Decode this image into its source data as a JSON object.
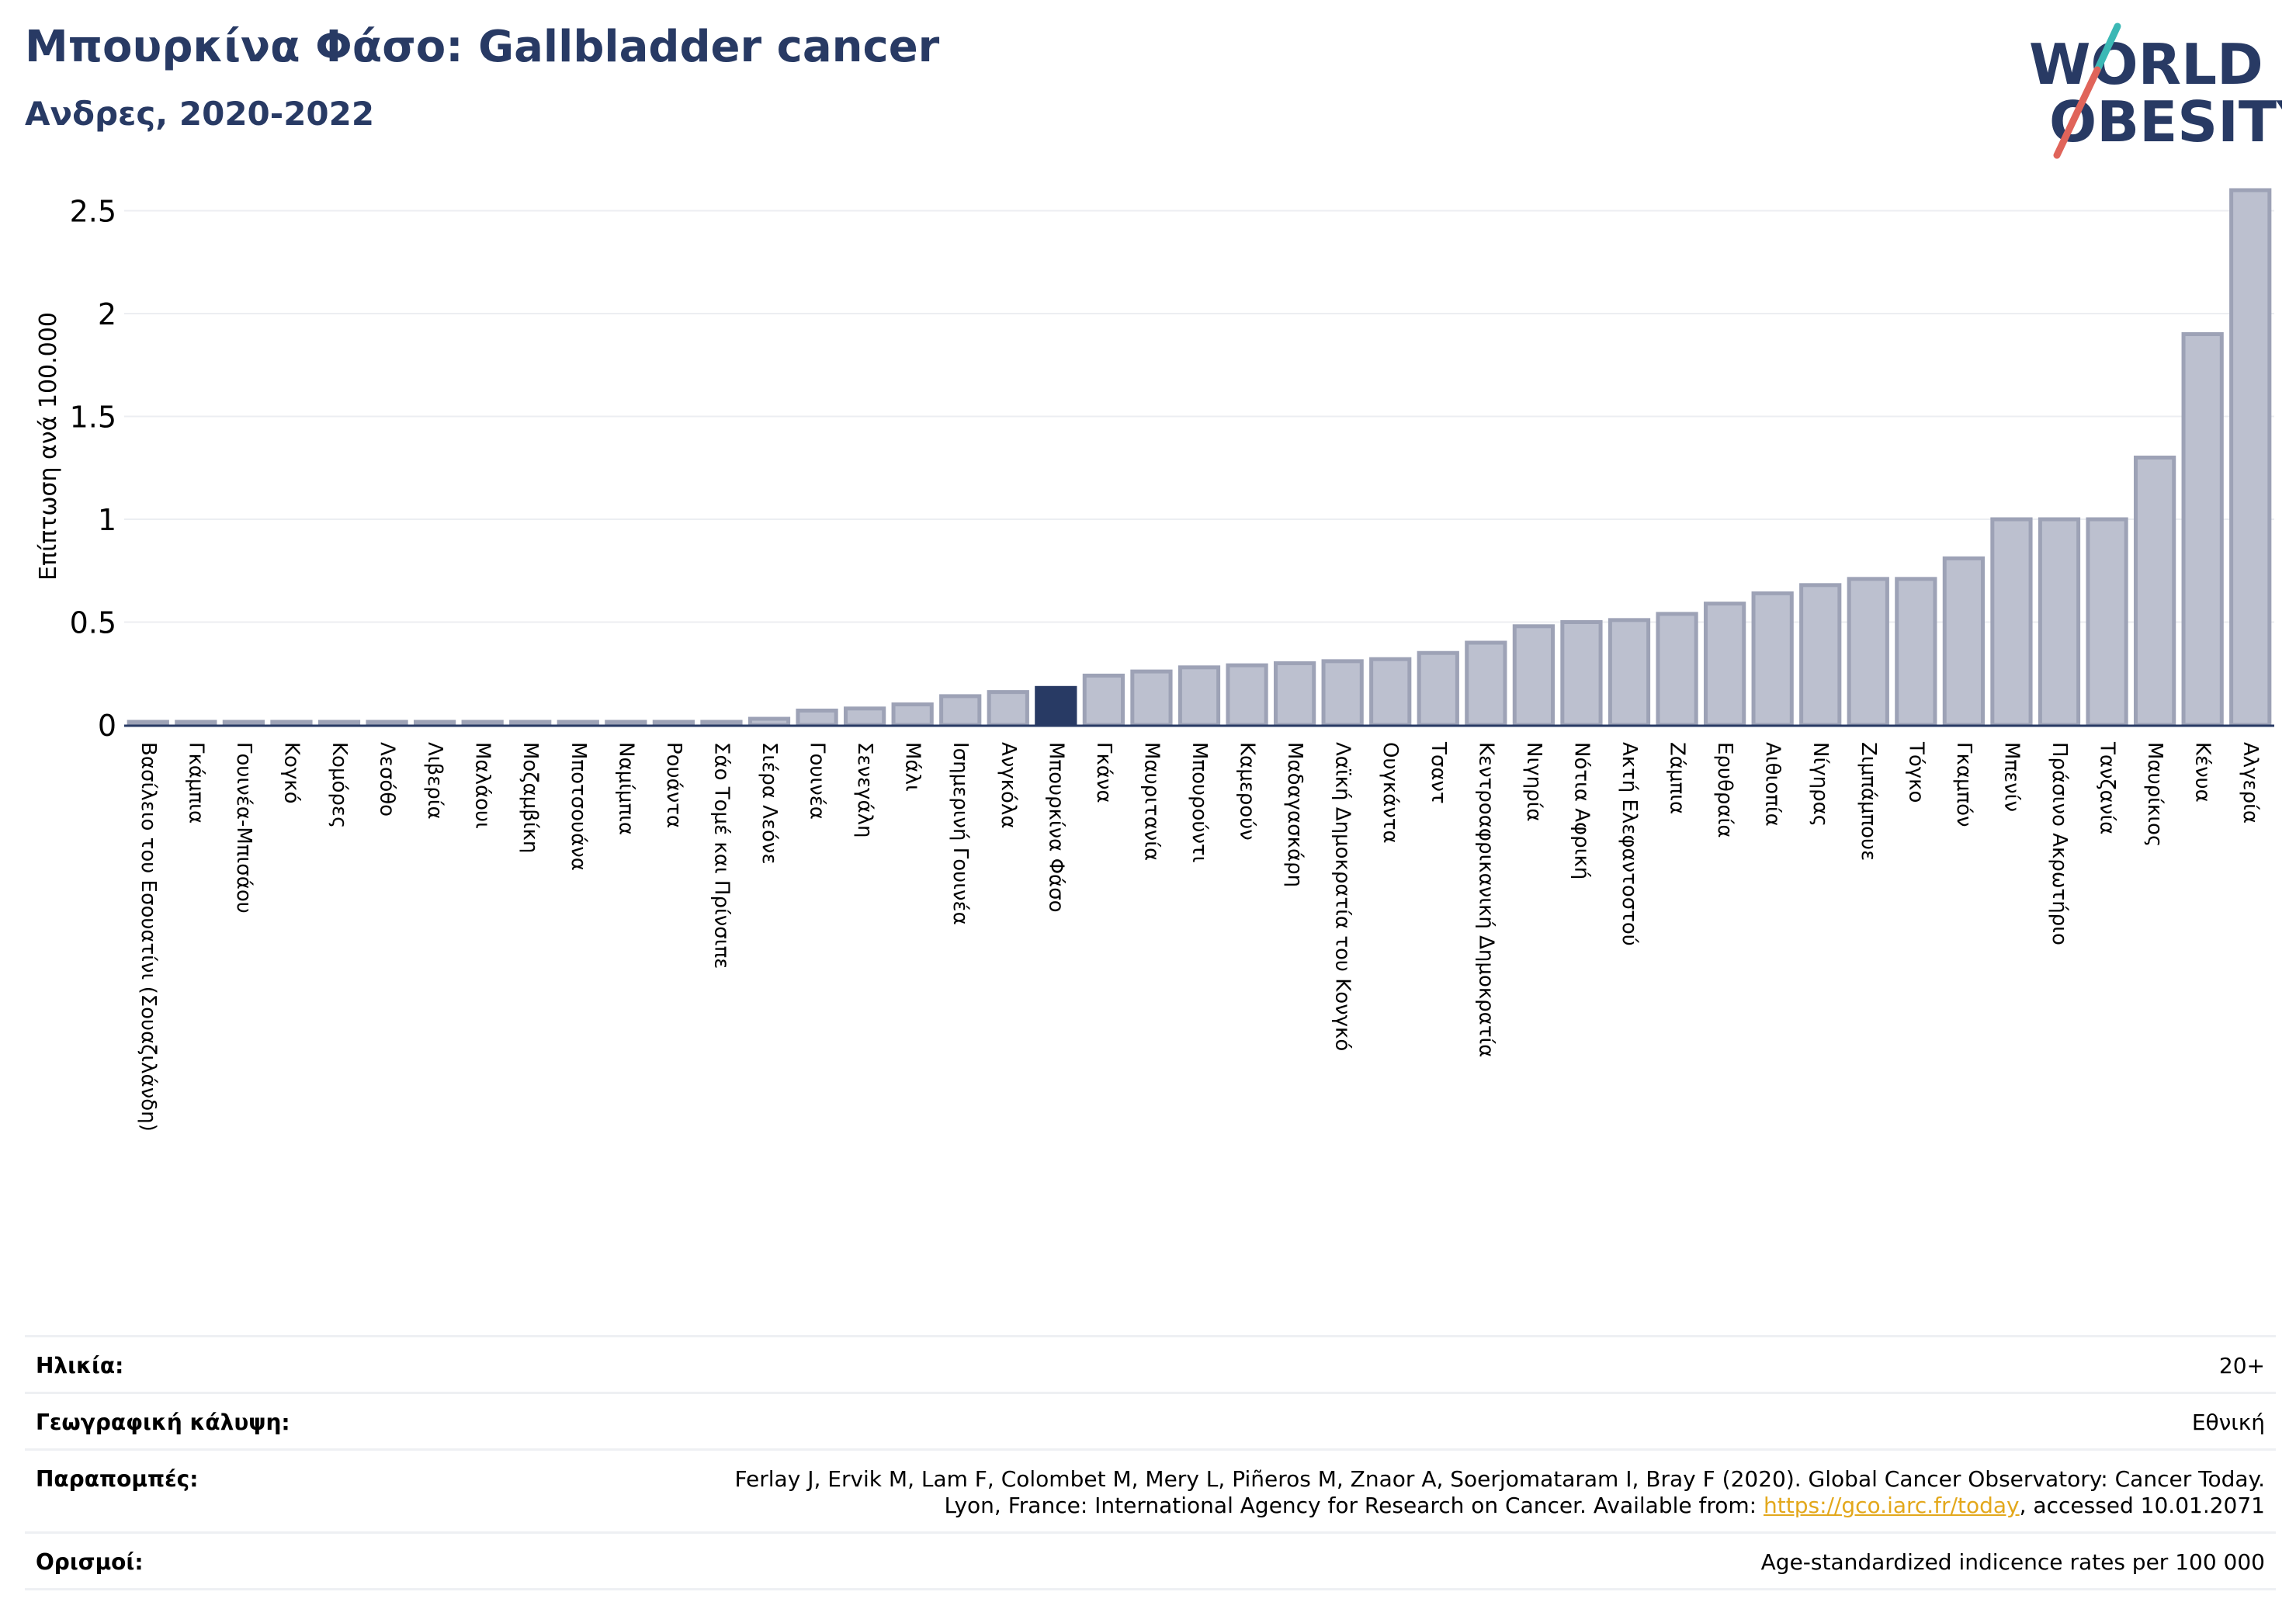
{
  "header": {
    "title": "Μπουρκίνα Φάσο: Gallbladder cancer",
    "subtitle": "Ανδρες, 2020-2022"
  },
  "logo": {
    "line1": "WORLD",
    "line2": "OBESITY"
  },
  "colors": {
    "highlight": "#283a64",
    "bar_fill": "#bcc0cf",
    "bar_stroke": "#9da2b6",
    "grid": "#eceef2"
  },
  "chart_data": {
    "type": "bar",
    "ylabel": "Επίπτωση ανά 100.000",
    "xlabel": "",
    "ylim": [
      0,
      2.6
    ],
    "yticks": [
      "0",
      "0.5",
      "1",
      "1.5",
      "2",
      "2.5"
    ],
    "highlight": "Μπουρκίνα Φάσο",
    "grid": true,
    "categories": [
      "Βασίλειο του Εσουατίνι (Σουαζιλάνδη)",
      "Γκάμπια",
      "Γουινέα-Μπισάου",
      "Κογκό",
      "Κομόρες",
      "Λεσόθο",
      "Λιβερία",
      "Μαλάουι",
      "Μοζαμβίκη",
      "Μποτσουάνα",
      "Ναμίμπια",
      "Ρουάντα",
      "Σάο Τομέ και Πρίνσιπε",
      "Σιέρα Λεόνε",
      "Γουινέα",
      "Σενεγάλη",
      "Μάλι",
      "Ισημερινή Γουινέα",
      "Ανγκόλα",
      "Μπουρκίνα Φάσο",
      "Γκάνα",
      "Μαυριτανία",
      "Μπουρούντι",
      "Καμερούν",
      "Μαδαγασκάρη",
      "Λαϊκή Δημοκρατία του Κονγκό",
      "Ουγκάντα",
      "Τσαντ",
      "Κεντροαφρικανική Δημοκρατία",
      "Νιγηρία",
      "Νότια Αφρική",
      "Ακτή Ελεφαντοστού",
      "Ζάμπια",
      "Ερυθραία",
      "Αιθιοπία",
      "Νίγηρας",
      "Ζιμπάμπουε",
      "Τόγκο",
      "Γκαμπόν",
      "Μπενίν",
      "Πράσινο Ακρωτήριο",
      "Τανζανία",
      "Μαυρίκιος",
      "Κένυα",
      "Αλγερία"
    ],
    "values": [
      0,
      0,
      0,
      0,
      0,
      0,
      0,
      0,
      0,
      0,
      0,
      0,
      0,
      0.03,
      0.07,
      0.08,
      0.1,
      0.14,
      0.16,
      0.18,
      0.24,
      0.26,
      0.28,
      0.29,
      0.3,
      0.31,
      0.32,
      0.35,
      0.4,
      0.48,
      0.5,
      0.51,
      0.54,
      0.59,
      0.64,
      0.68,
      0.71,
      0.71,
      0.81,
      1.0,
      1.0,
      1.0,
      1.3,
      1.9,
      2.6
    ]
  },
  "footer": {
    "rows": [
      {
        "label": "Ηλικία:",
        "lines": [
          "20+"
        ]
      },
      {
        "label": "Γεωγραφική κάλυψη:",
        "lines": [
          "Εθνική"
        ]
      },
      {
        "label": "Παραπομπές:",
        "lines": [
          "Ferlay J, Ervik M, Lam F, Colombet M, Mery L, Piñeros M, Znaor A, Soerjomataram I, Bray F (2020). Global Cancer Observatory: Cancer Today.",
          "Lyon, France: International Agency for Research on Cancer. Available from: "
        ],
        "link": "https://gco.iarc.fr/today",
        "after_link": ", accessed 10.01.2071"
      },
      {
        "label": "Ορισμοί:",
        "lines": [
          "Age-standardized indicence rates per 100 000"
        ]
      }
    ]
  }
}
